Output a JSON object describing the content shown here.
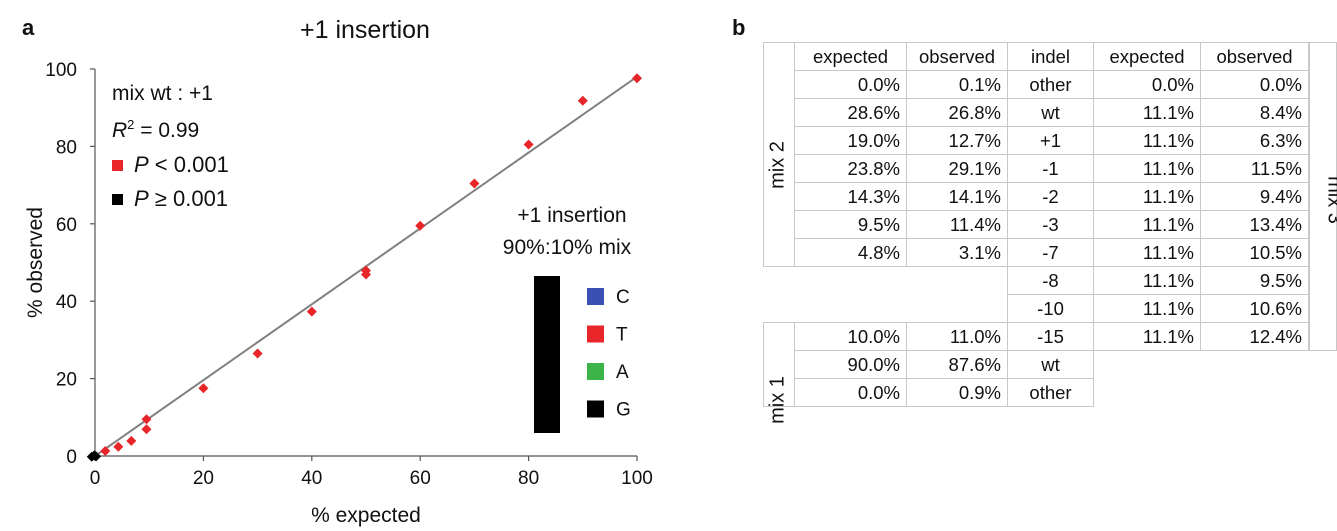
{
  "panel_a": {
    "letter": "a"
  },
  "panel_b": {
    "letter": "b",
    "headers": [
      "expected",
      "observed",
      "indel",
      "expected",
      "observed"
    ],
    "rows_mix2": [
      [
        "0.0%",
        "0.1%",
        "other",
        "0.0%",
        "0.0%"
      ],
      [
        "28.6%",
        "26.8%",
        "wt",
        "11.1%",
        "8.4%"
      ],
      [
        "19.0%",
        "12.7%",
        "+1",
        "11.1%",
        "6.3%"
      ],
      [
        "23.8%",
        "29.1%",
        "-1",
        "11.1%",
        "11.5%"
      ],
      [
        "14.3%",
        "14.1%",
        "-2",
        "11.1%",
        "9.4%"
      ],
      [
        "9.5%",
        "11.4%",
        "-3",
        "11.1%",
        "13.4%"
      ],
      [
        "4.8%",
        "3.1%",
        "-7",
        "11.1%",
        "10.5%"
      ]
    ],
    "rows_mix3_only": [
      [
        "-8",
        "11.1%",
        "9.5%"
      ],
      [
        "-10",
        "11.1%",
        "10.6%"
      ]
    ],
    "rows_mix1": [
      [
        "10.0%",
        "11.0%",
        "-15",
        "11.1%",
        "12.4%"
      ],
      [
        "90.0%",
        "87.6%",
        "wt",
        "",
        ""
      ],
      [
        "0.0%",
        "0.9%",
        "other",
        "",
        ""
      ]
    ],
    "label_mix1": "mix 1",
    "label_mix2": "mix 2",
    "label_mix3": "mix 3"
  },
  "chart_data": {
    "type": "scatter",
    "title": "+1 insertion",
    "xlabel": "% expected",
    "ylabel": "% observed",
    "xlim": [
      0,
      100
    ],
    "ylim": [
      0,
      100
    ],
    "xticks": [
      0,
      20,
      40,
      60,
      80,
      100
    ],
    "yticks": [
      0,
      20,
      40,
      60,
      80,
      100
    ],
    "fit_line": {
      "x": [
        0,
        100
      ],
      "y": [
        0,
        98
      ]
    },
    "annotations": {
      "mix_label": "mix wt : +1",
      "r2_label": "R",
      "r2_sup": "2",
      "r2_value": " = 0.99",
      "p_sig_p": "P",
      "p_sig_rest": " < 0.001",
      "p_nonsig_p": "P",
      "p_nonsig_rest": " ≥ 0.001",
      "inset_title_1": "+1 insertion",
      "inset_title_2": "90%:10% mix"
    },
    "inset_legend": [
      {
        "name": "C",
        "color": "#3c50b4"
      },
      {
        "name": "T",
        "color": "#e8262a"
      },
      {
        "name": "A",
        "color": "#3cb44a"
      },
      {
        "name": "G",
        "color": "#000000"
      }
    ],
    "series": [
      {
        "name": "P < 0.001",
        "color": "#e8262a",
        "x": [
          1.9,
          4.3,
          6.7,
          9.5,
          9.5,
          20,
          30,
          40,
          50,
          50,
          60,
          70,
          80,
          90,
          100
        ],
        "y": [
          1.3,
          2.4,
          3.9,
          6.9,
          9.5,
          17.5,
          26.5,
          37.3,
          46.9,
          47.9,
          59.5,
          70.4,
          80.5,
          91.8,
          97.6
        ]
      },
      {
        "name": "P ≥ 0.001",
        "color": "#000000",
        "x": [
          -0.6,
          -0.1,
          0.2
        ],
        "y": [
          -0.2,
          0.2,
          -0.1
        ]
      }
    ]
  }
}
